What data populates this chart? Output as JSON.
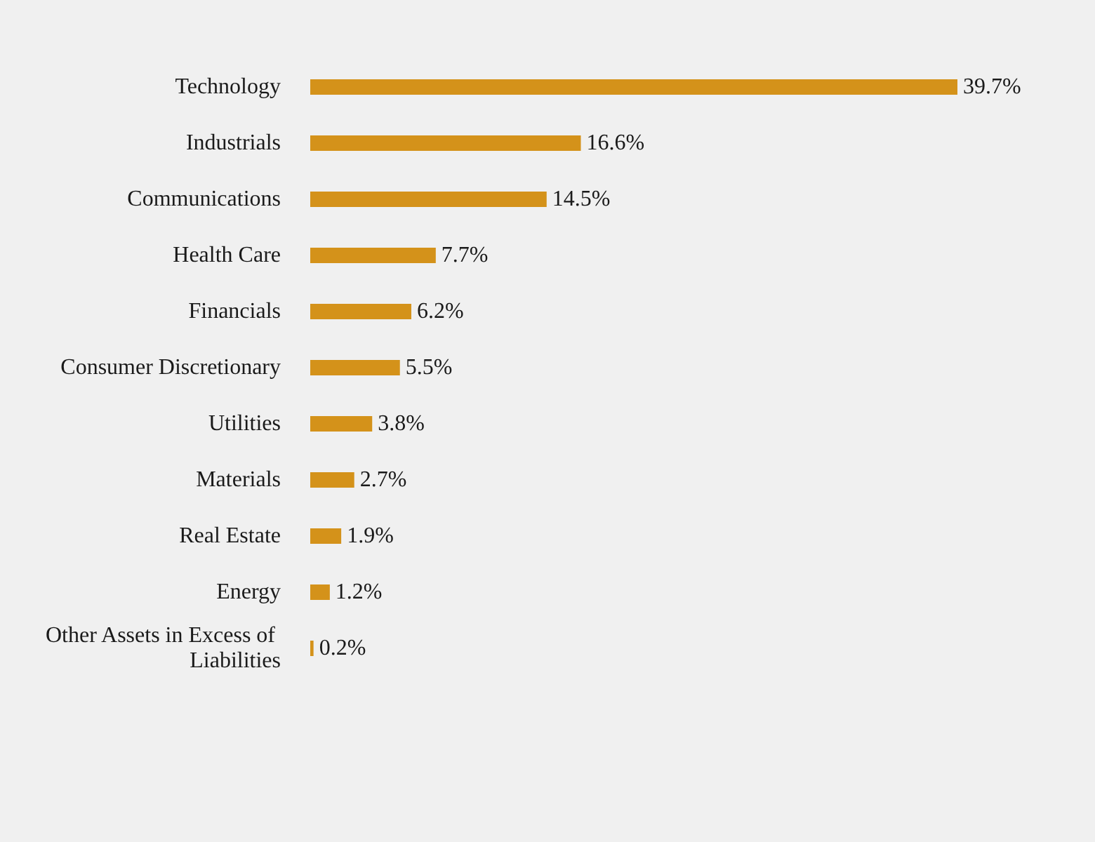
{
  "chart_data": {
    "type": "bar",
    "orientation": "horizontal",
    "categories": [
      "Technology",
      "Industrials",
      "Communications",
      "Health Care",
      "Financials",
      "Consumer Discretionary",
      "Utilities",
      "Materials",
      "Real Estate",
      "Energy",
      "Other Assets in Excess of Liabilities"
    ],
    "values": [
      39.7,
      16.6,
      14.5,
      7.7,
      6.2,
      5.5,
      3.8,
      2.7,
      1.9,
      1.2,
      0.2
    ],
    "value_labels": [
      "39.7%",
      "16.6%",
      "14.5%",
      "7.7%",
      "6.2%",
      "5.5%",
      "3.8%",
      "2.7%",
      "1.9%",
      "1.2%",
      "0.2%"
    ],
    "color": "#d4921a",
    "tick_labels": "y"
  }
}
